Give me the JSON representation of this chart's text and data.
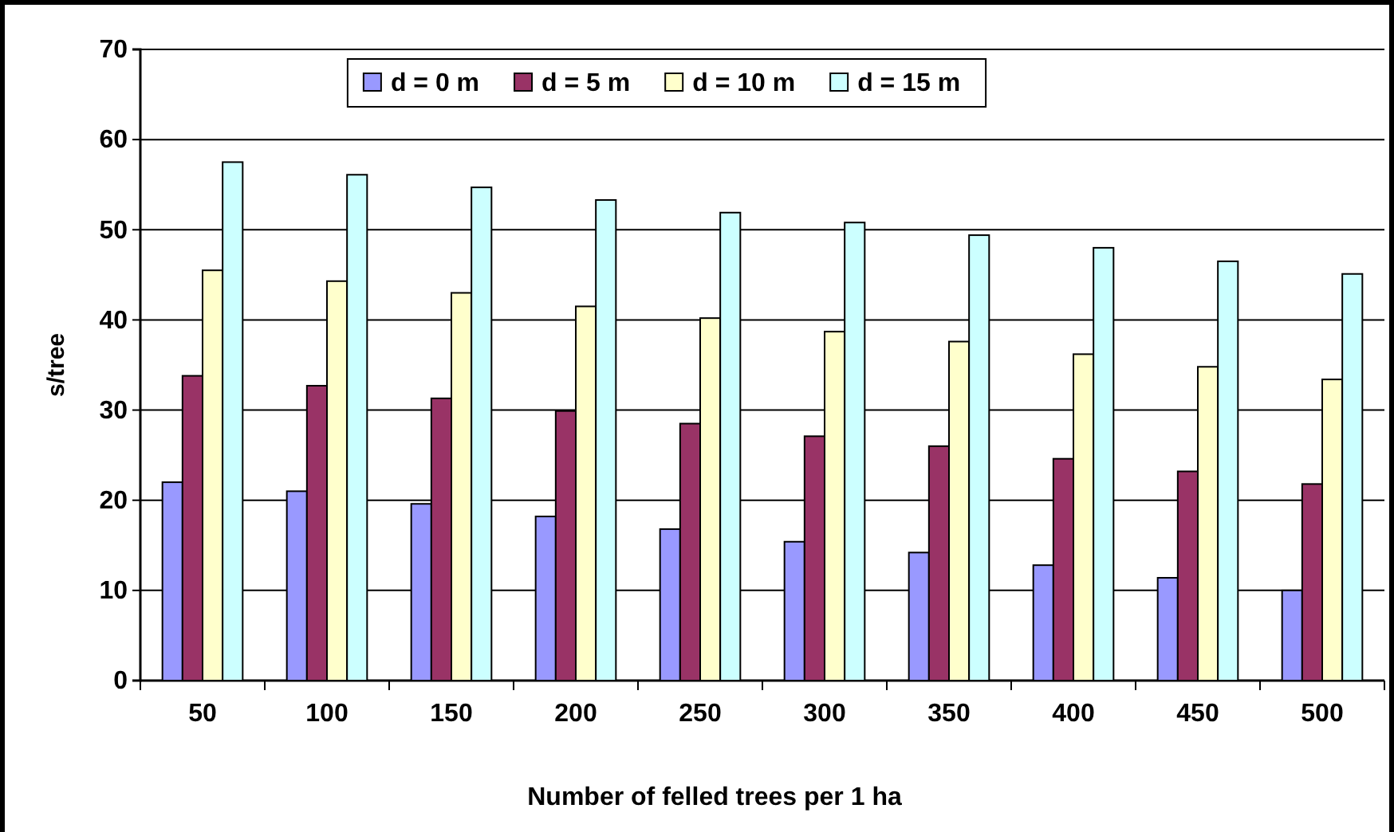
{
  "chart_data": {
    "type": "bar",
    "xlabel": "Number of felled trees per 1 ha",
    "ylabel": "s/tree",
    "categories": [
      "50",
      "100",
      "150",
      "200",
      "250",
      "300",
      "350",
      "400",
      "450",
      "500"
    ],
    "series": [
      {
        "name": "d = 0 m",
        "color": "#9999ff",
        "values": [
          22,
          21,
          19.6,
          18.2,
          16.8,
          15.4,
          14.2,
          12.8,
          11.4,
          10
        ]
      },
      {
        "name": "d = 5 m",
        "color": "#993366",
        "values": [
          33.8,
          32.7,
          31.3,
          29.9,
          28.5,
          27.1,
          26,
          24.6,
          23.2,
          21.8
        ]
      },
      {
        "name": "d = 10 m",
        "color": "#ffffcc",
        "values": [
          45.5,
          44.3,
          43,
          41.5,
          40.2,
          38.7,
          37.6,
          36.2,
          34.8,
          33.4
        ]
      },
      {
        "name": "d = 15 m",
        "color": "#ccffff",
        "values": [
          57.5,
          56.1,
          54.7,
          53.3,
          51.9,
          50.8,
          49.4,
          48,
          46.5,
          45.1
        ]
      }
    ],
    "ylim": [
      0,
      70
    ],
    "yticks": [
      0,
      10,
      20,
      30,
      40,
      50,
      60,
      70
    ],
    "grid": "y",
    "legend": "top"
  }
}
